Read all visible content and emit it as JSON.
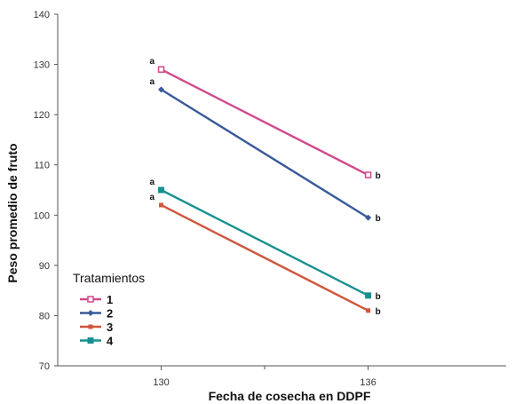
{
  "chart_data": {
    "type": "line",
    "xlabel": "Fecha de cosecha en DDPF",
    "ylabel": "Peso promedio de fruto",
    "x": [
      130,
      136
    ],
    "x_tick_labels": [
      "130",
      "136"
    ],
    "xlim": [
      127,
      140
    ],
    "ylim": [
      70,
      140
    ],
    "y_ticks": [
      70,
      80,
      90,
      100,
      110,
      120,
      130,
      140
    ],
    "grid": false,
    "legend": {
      "title": "Tratamientos",
      "position": "left"
    },
    "series": [
      {
        "name": "1",
        "values": [
          129,
          108
        ],
        "color": "#d04a8a",
        "marker": "open-square",
        "labels": [
          "a",
          "b"
        ]
      },
      {
        "name": "2",
        "values": [
          125,
          99.5
        ],
        "color": "#3a5a9a",
        "marker": "diamond",
        "labels": [
          "a",
          "b"
        ]
      },
      {
        "name": "3",
        "values": [
          102,
          81
        ],
        "color": "#d0563c",
        "marker": "square",
        "labels": [
          "a",
          "b"
        ]
      },
      {
        "name": "4",
        "values": [
          105,
          84
        ],
        "color": "#17918f",
        "marker": "filled-square",
        "labels": [
          "a",
          "b"
        ]
      }
    ]
  }
}
